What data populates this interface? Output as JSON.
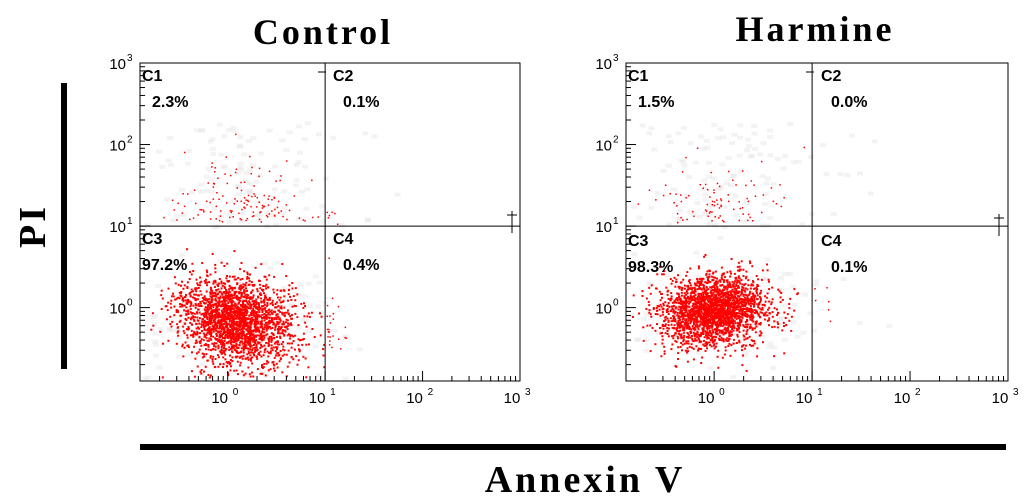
{
  "colors": {
    "dots": "#ff0000",
    "haze": "#e4e4e4",
    "axis": "#000000"
  },
  "y_axis_title": "PI",
  "x_axis_title": "Annexin V",
  "chart_data": [
    {
      "type": "scatter",
      "title": "Control",
      "xlabel": "Annexin V",
      "ylabel": "PI",
      "x_scale": "log",
      "y_scale": "log",
      "xlim": [
        0.1259,
        1000
      ],
      "ylim": [
        0.1259,
        1000
      ],
      "x_tick_labels": [
        "10",
        "10",
        "10",
        "10"
      ],
      "x_tick_exponents": [
        "0",
        "1",
        "2",
        "3"
      ],
      "y_tick_labels": [
        "10",
        "10",
        "10",
        "10"
      ],
      "y_tick_exponents": [
        "0",
        "1",
        "2",
        "3"
      ],
      "gates": {
        "x": 10,
        "y": 10
      },
      "quadrants": [
        {
          "name": "C1",
          "percent": "2.3%",
          "value": 2.3
        },
        {
          "name": "C2",
          "percent": "0.1%",
          "value": 0.1
        },
        {
          "name": "C3",
          "percent": "97.2%",
          "value": 97.2
        },
        {
          "name": "C4",
          "percent": "0.4%",
          "value": 0.4
        }
      ],
      "main_population": {
        "x_center": 1.2,
        "y_center": 0.7
      },
      "grid": false
    },
    {
      "type": "scatter",
      "title": "Harmine",
      "xlabel": "Annexin V",
      "ylabel": "PI",
      "x_scale": "log",
      "y_scale": "log",
      "xlim": [
        0.1259,
        1000
      ],
      "ylim": [
        0.1259,
        1000
      ],
      "x_tick_labels": [
        "10",
        "10",
        "10",
        "10"
      ],
      "x_tick_exponents": [
        "0",
        "1",
        "2",
        "3"
      ],
      "y_tick_labels": [
        "10",
        "10",
        "10",
        "10"
      ],
      "y_tick_exponents": [
        "0",
        "1",
        "2",
        "3"
      ],
      "gates": {
        "x": 10,
        "y": 10
      },
      "quadrants": [
        {
          "name": "C1",
          "percent": "1.5%",
          "value": 1.5
        },
        {
          "name": "C2",
          "percent": "0.0%",
          "value": 0.0
        },
        {
          "name": "C3",
          "percent": "98.3%",
          "value": 98.3
        },
        {
          "name": "C4",
          "percent": "0.1%",
          "value": 0.1
        }
      ],
      "main_population": {
        "x_center": 1.0,
        "y_center": 0.95
      },
      "grid": false
    }
  ]
}
